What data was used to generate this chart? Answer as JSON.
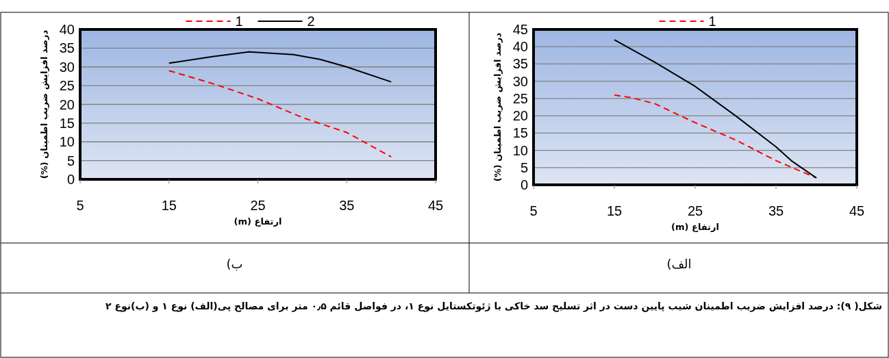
{
  "chart_data": [
    {
      "type": "line",
      "xlabel": "ارتفاع (m)",
      "ylabel": "درصد افزایش ضریب اطمینان (%)",
      "xlim": [
        5,
        45
      ],
      "xticks": [
        5,
        15,
        25,
        35,
        45
      ],
      "ylim": [
        0,
        40
      ],
      "yticks": [
        0,
        5,
        10,
        15,
        20,
        25,
        30,
        35,
        40
      ],
      "grid": "y",
      "legend": "top",
      "series": [
        {
          "name": "1",
          "color": "#ff0000",
          "line_style": "dashed",
          "x": [
            15,
            20,
            25,
            30,
            35,
            40
          ],
          "values": [
            29,
            25.5,
            21.5,
            16.5,
            12.5,
            6
          ]
        },
        {
          "name": "2",
          "color": "#000000",
          "line_style": "solid",
          "x": [
            15,
            20,
            24,
            29,
            32,
            35,
            40
          ],
          "values": [
            31,
            32.8,
            34,
            33.3,
            32,
            30,
            26
          ]
        }
      ],
      "annotations": [
        "ب)"
      ]
    },
    {
      "type": "line",
      "xlabel": "ارتفاع (m)",
      "ylabel": "درصد افزایش ضریب اطمینان (%)",
      "xlim": [
        5,
        45
      ],
      "xticks": [
        5,
        15,
        25,
        35,
        45
      ],
      "ylim": [
        0,
        45
      ],
      "yticks": [
        0,
        5,
        10,
        15,
        20,
        25,
        30,
        35,
        40,
        45
      ],
      "grid": "y",
      "legend": "top",
      "series": [
        {
          "name": "1",
          "color": "#ff0000",
          "line_style": "dashed",
          "x": [
            15,
            17,
            20,
            25,
            30,
            35,
            40
          ],
          "values": [
            26,
            25.3,
            23.5,
            18,
            13,
            7,
            2
          ]
        },
        {
          "color": "#000000",
          "line_style": "solid",
          "x": [
            15,
            20,
            25,
            30,
            35,
            37,
            40
          ],
          "values": [
            42,
            35.5,
            28.5,
            20,
            11,
            6.8,
            2
          ]
        }
      ],
      "annotations": [
        "الف)",
        "شکل( ۹): درصد افزایش ضریب اطمینان شیب پایین دست در اثر تسلیح سد خاکی با ژئوتکستایل نوع ۱، در فواصل قائم ۰٫۵ متر برای مصالح پی(الف) نوع ۱ و (ب)نوع ۲"
      ]
    }
  ]
}
